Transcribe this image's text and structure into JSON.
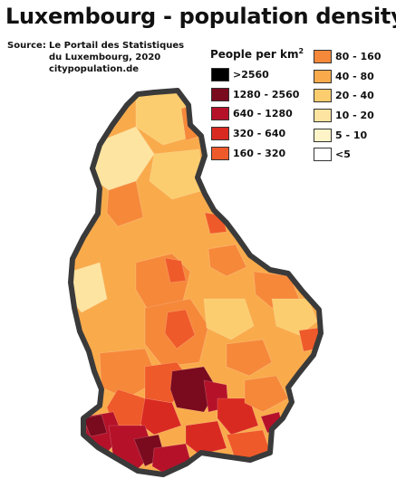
{
  "title": "Luxembourg - population density",
  "source": {
    "label": "Source:",
    "line1": "Le Portail des Statistiques",
    "line2": "du Luxembourg, 2020",
    "line3": "citypopulation.de"
  },
  "legend": {
    "title": "People per km",
    "title_sup": "2",
    "classes": [
      {
        "label": ">2560",
        "color": "#000000"
      },
      {
        "label": "1280 - 2560",
        "color": "#7a0a1e"
      },
      {
        "label": "640 - 1280",
        "color": "#b5122a"
      },
      {
        "label": "320 - 640",
        "color": "#d92a22"
      },
      {
        "label": "160 - 320",
        "color": "#ef5a2a"
      },
      {
        "label": "80 - 160",
        "color": "#f6883a"
      },
      {
        "label": "40 - 80",
        "color": "#f9ab4c"
      },
      {
        "label": "20 - 40",
        "color": "#fbcd6e"
      },
      {
        "label": "10 - 20",
        "color": "#fde4a0"
      },
      {
        "label": "5 - 10",
        "color": "#fff4c8"
      },
      {
        "label": "<5",
        "color": "#ffffff"
      }
    ]
  },
  "map": {
    "border_color": "#3a3a3a",
    "base_color": "#f9ab4c"
  }
}
